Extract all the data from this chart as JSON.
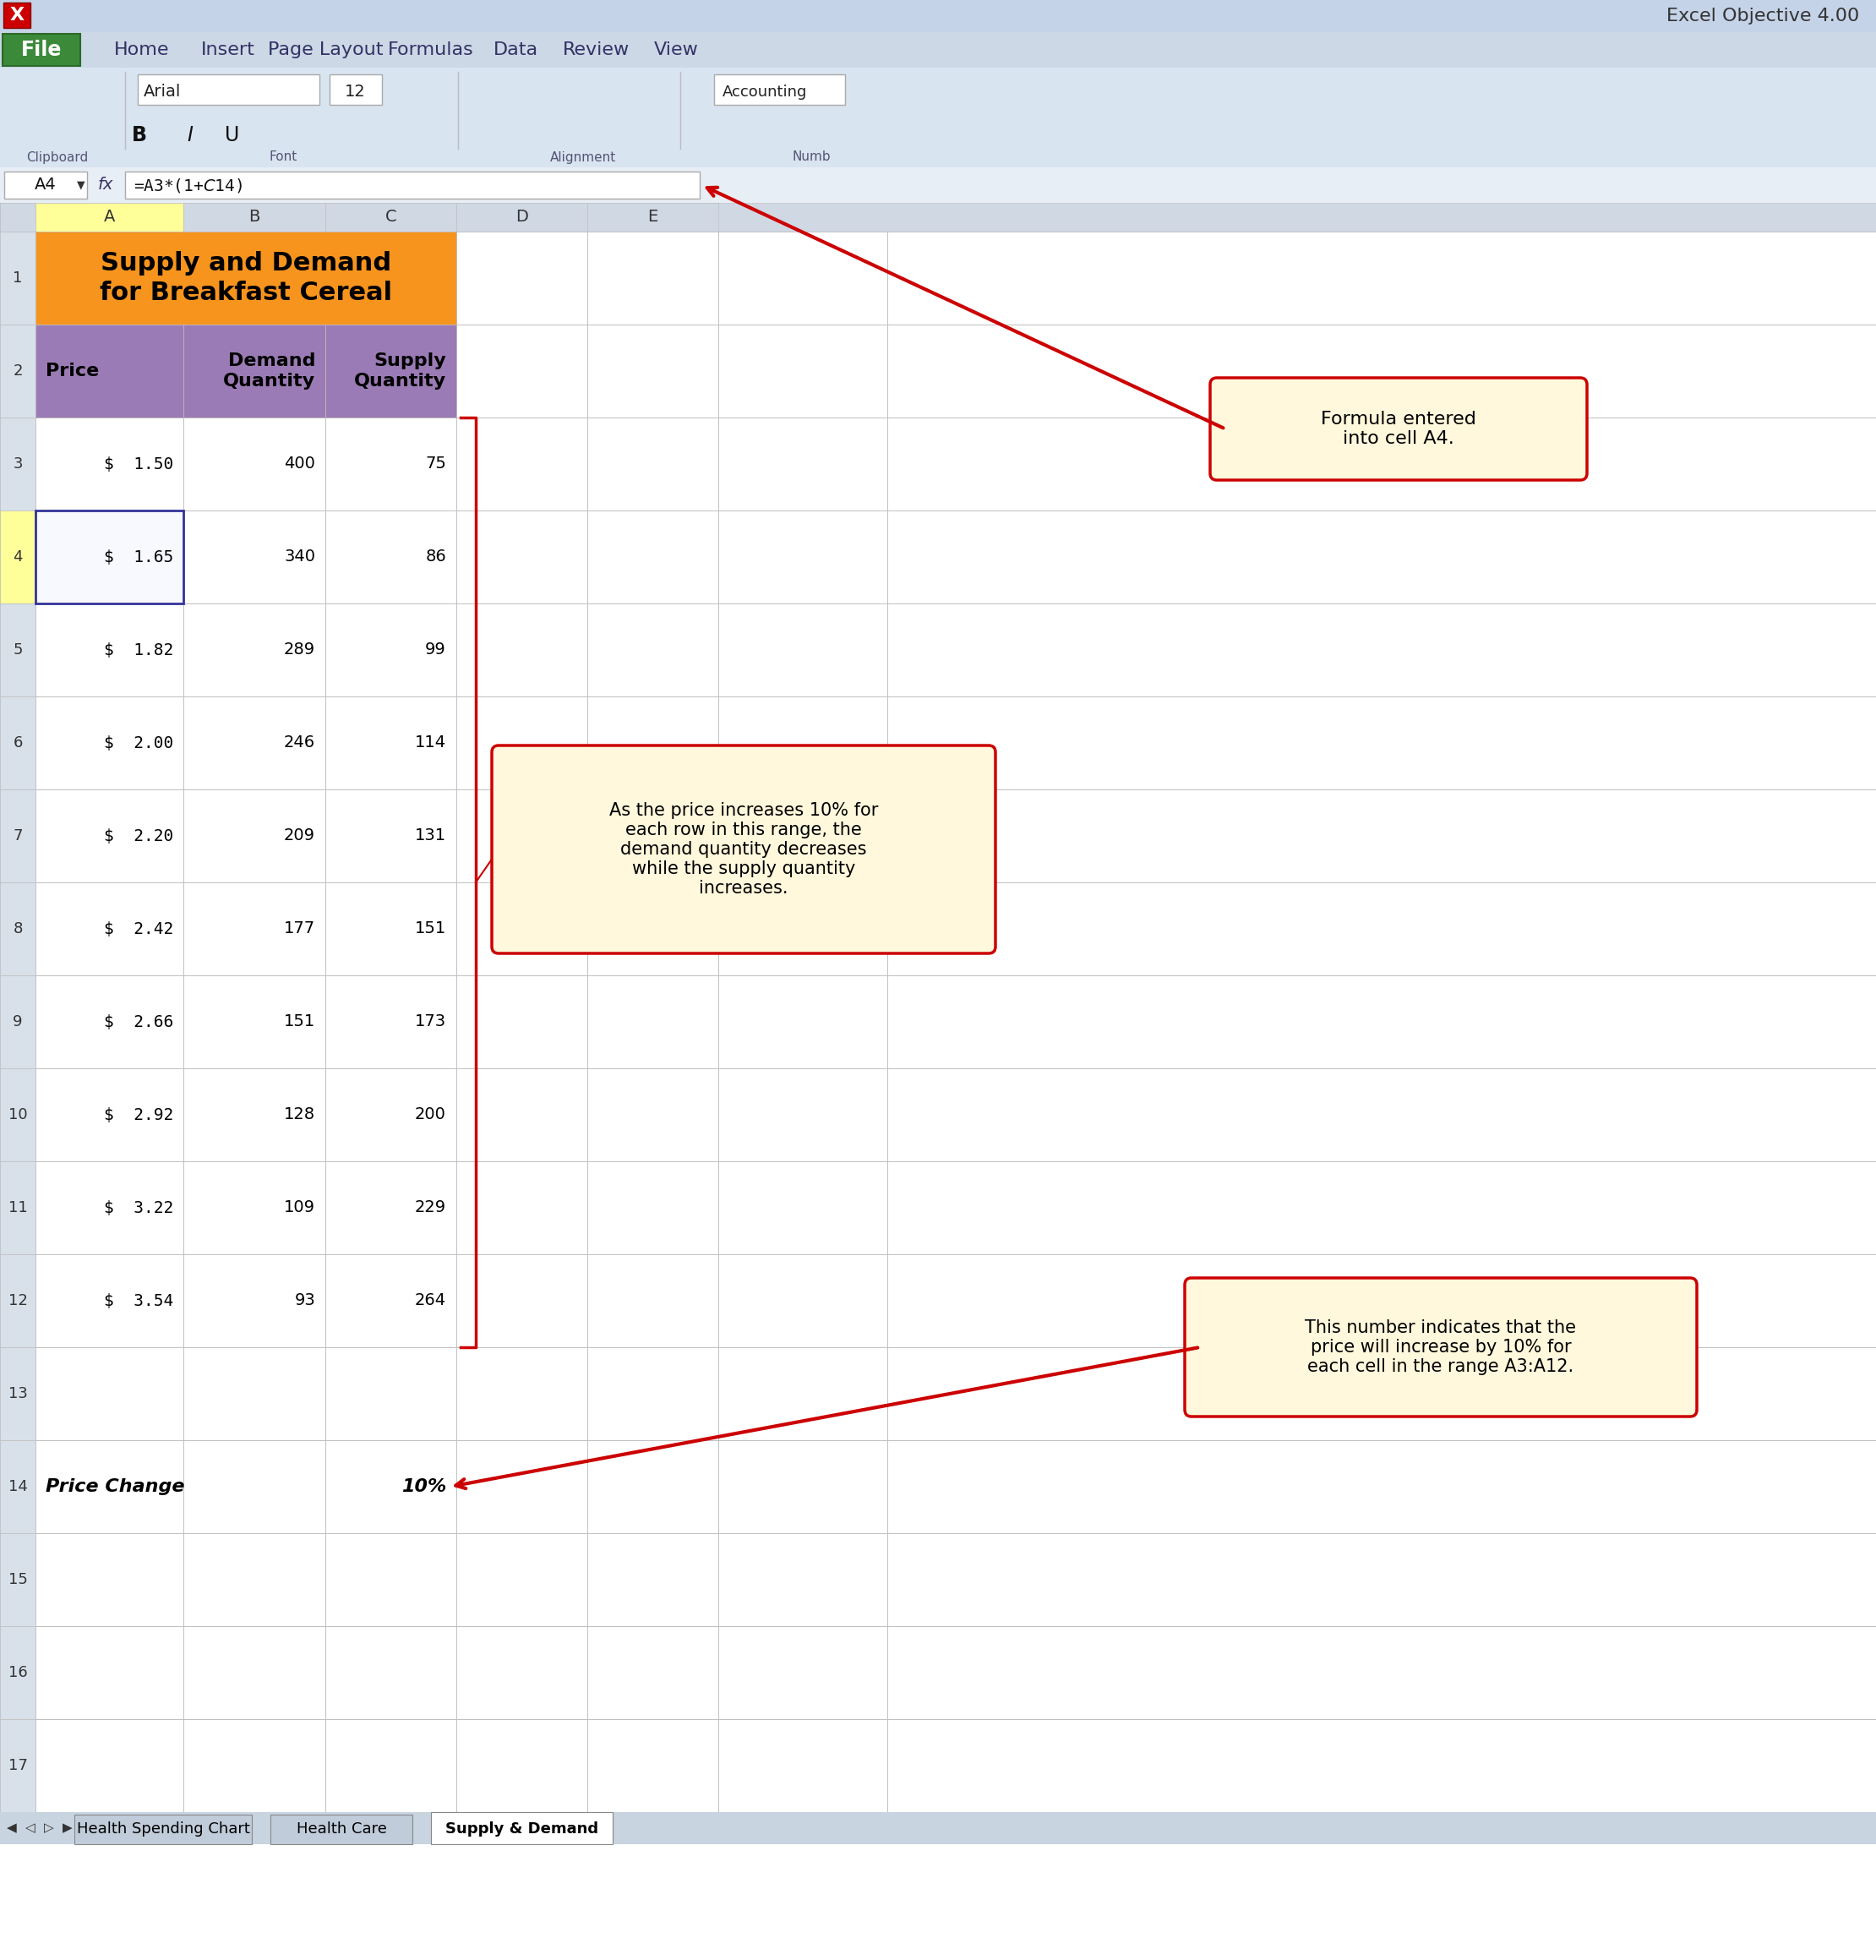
{
  "title_line1": "Supply and Demand",
  "title_line2": "for Breakfast Cereal",
  "prices": [
    "$  1.50",
    "$  1.65",
    "$  1.82",
    "$  2.00",
    "$  2.20",
    "$  2.42",
    "$  2.66",
    "$  2.92",
    "$  3.22",
    "$  3.54"
  ],
  "demand": [
    400,
    340,
    289,
    246,
    209,
    177,
    151,
    128,
    109,
    93
  ],
  "supply": [
    75,
    86,
    99,
    114,
    131,
    151,
    173,
    200,
    229,
    264
  ],
  "price_change_label": "Price Change",
  "price_change_value": "10%",
  "formula_text": "=A3*(1+$C$14)",
  "callout1_text": "Formula entered\ninto cell A4.",
  "callout2_text": "As the price increases 10% for\neach row in this range, the\ndemand quantity decreases\nwhile the supply quantity\nincreases.",
  "callout3_text": "This number indicates that the\nprice will increase by 10% for\neach cell in the range A3:A12.",
  "tab_names": [
    "Health Spending Chart",
    "Health Care",
    "Supply & Demand"
  ],
  "active_tab": "Supply & Demand",
  "cell_ref": "A4",
  "col_letters": [
    "A",
    "B",
    "C",
    "D",
    "E"
  ],
  "title_bg": "#F7941D",
  "header_bg": "#9B7BB5",
  "callout_bg": "#FFF8DC",
  "callout_border": "#CC0000",
  "excel_title_text": "Excel Objective 4.00",
  "arrow_color": "#CC0000",
  "ribbon_bg": "#C5D3E8",
  "ribbon2_bg": "#D8E4F0",
  "formula_bar_bg": "#E8EEF5",
  "grid_color": "#C0C0C0",
  "row_num_bg": "#D8E0EA",
  "col_header_bg": "#D0D8E4",
  "sheet_bg": "#FFFFFF",
  "tab_bar_bg": "#C8D4E0",
  "inactive_tab_bg": "#C0CCDA"
}
